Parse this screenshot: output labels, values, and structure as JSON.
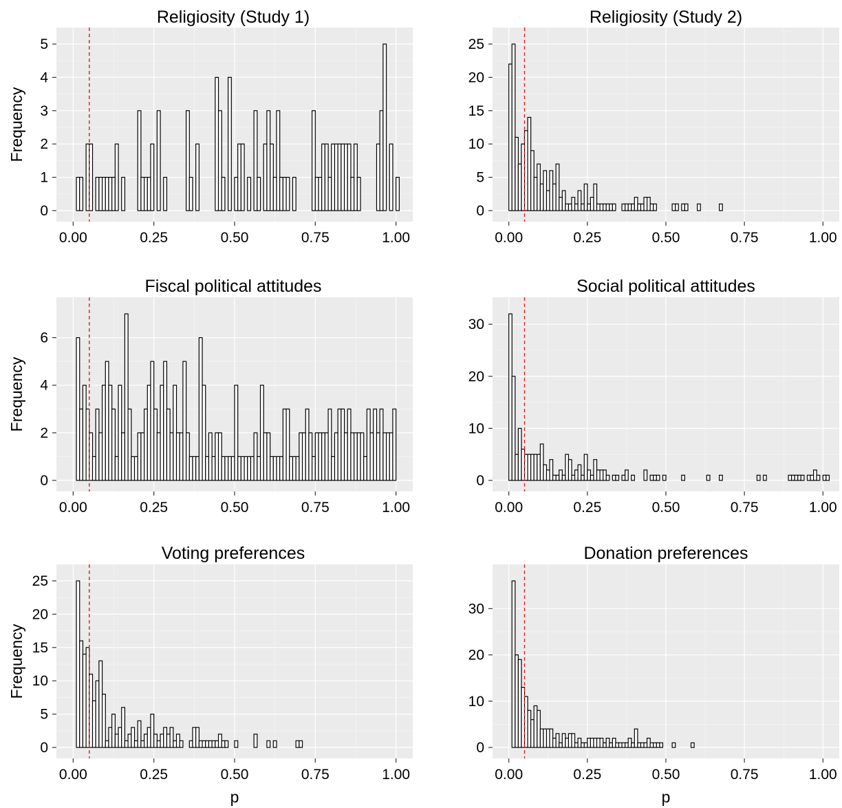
{
  "chart_data": [
    {
      "type": "bar",
      "title": "Religiosity (Study 1)",
      "xlabel": "",
      "ylabel": "Frequency",
      "bin_width": 0.01,
      "x_start": 0.0,
      "xlim": [
        0,
        1
      ],
      "ylim": [
        0,
        5
      ],
      "xticks": [
        0,
        0.25,
        0.5,
        0.75,
        1
      ],
      "xtick_labels": [
        "0.00",
        "0.25",
        "0.50",
        "0.75",
        "1.00"
      ],
      "yticks": [
        0,
        1,
        2,
        3,
        4,
        5
      ],
      "ytick_labels": [
        "0",
        "1",
        "2",
        "3",
        "4",
        "5"
      ],
      "reference_line_x": 0.05,
      "values": [
        0,
        1,
        1,
        0,
        2,
        2,
        0,
        1,
        1,
        1,
        1,
        1,
        1,
        2,
        0,
        1,
        0,
        0,
        0,
        0,
        3,
        1,
        1,
        1,
        2,
        0,
        3,
        0,
        1,
        0,
        0,
        0,
        0,
        0,
        0,
        3,
        1,
        0,
        2,
        0,
        0,
        0,
        0,
        0,
        4,
        3,
        1,
        0,
        4,
        0,
        1,
        2,
        2,
        0,
        1,
        0,
        3,
        1,
        0,
        2,
        3,
        2,
        1,
        3,
        1,
        1,
        1,
        0,
        1,
        0,
        0,
        0,
        0,
        0,
        3,
        1,
        1,
        2,
        2,
        1,
        2,
        2,
        2,
        2,
        2,
        2,
        1,
        2,
        1,
        0,
        0,
        0,
        0,
        0,
        2,
        3,
        5,
        0,
        2,
        0,
        1
      ],
      "grid": true
    },
    {
      "type": "bar",
      "title": "Religiosity (Study 2)",
      "xlabel": "",
      "ylabel": "",
      "bin_width": 0.01,
      "x_start": 0.0,
      "xlim": [
        0,
        1
      ],
      "ylim": [
        0,
        25
      ],
      "xticks": [
        0,
        0.25,
        0.5,
        0.75,
        1
      ],
      "xtick_labels": [
        "0.00",
        "0.25",
        "0.50",
        "0.75",
        "1.00"
      ],
      "yticks": [
        0,
        5,
        10,
        15,
        20,
        25
      ],
      "ytick_labels": [
        "0",
        "5",
        "10",
        "15",
        "20",
        "25"
      ],
      "reference_line_x": 0.05,
      "values": [
        22,
        25,
        11,
        7,
        10,
        12,
        14,
        9,
        5,
        7,
        4,
        6,
        3,
        6,
        4,
        7,
        2,
        3,
        1,
        1,
        2,
        1,
        3,
        1,
        4,
        1,
        2,
        4,
        1,
        1,
        1,
        1,
        1,
        1,
        0,
        0,
        1,
        1,
        1,
        1,
        2,
        1,
        1,
        2,
        2,
        1,
        1,
        0,
        0,
        0,
        0,
        0,
        1,
        1,
        0,
        1,
        1,
        0,
        0,
        0,
        1,
        0,
        0,
        0,
        0,
        0,
        0,
        1,
        0,
        0,
        0,
        0,
        0,
        0,
        0,
        0,
        0,
        0,
        0,
        0,
        0,
        0,
        0,
        0,
        0,
        0,
        0,
        0,
        0,
        0,
        0,
        0,
        0,
        0,
        0,
        0,
        0,
        0,
        0,
        0
      ],
      "grid": true
    },
    {
      "type": "bar",
      "title": "Fiscal political attitudes",
      "xlabel": "",
      "ylabel": "Frequency",
      "bin_width": 0.01,
      "x_start": 0.0,
      "xlim": [
        0,
        1
      ],
      "ylim": [
        0,
        7
      ],
      "xticks": [
        0,
        0.25,
        0.5,
        0.75,
        1
      ],
      "xtick_labels": [
        "0.00",
        "0.25",
        "0.50",
        "0.75",
        "1.00"
      ],
      "yticks": [
        0,
        2,
        4,
        6
      ],
      "ytick_labels": [
        "0",
        "2",
        "4",
        "6"
      ],
      "reference_line_x": 0.05,
      "values": [
        0,
        6,
        3,
        4,
        3,
        2,
        1,
        3,
        2,
        4,
        5,
        4,
        3,
        1,
        4,
        2,
        7,
        3,
        1,
        1,
        2,
        2,
        3,
        4,
        5,
        3,
        2,
        4,
        5,
        3,
        2,
        4,
        2,
        2,
        5,
        2,
        1,
        1,
        1,
        6,
        4,
        1,
        2,
        1,
        2,
        2,
        1,
        1,
        1,
        1,
        4,
        1,
        1,
        1,
        1,
        1,
        2,
        1,
        4,
        2,
        2,
        1,
        1,
        1,
        1,
        3,
        3,
        1,
        1,
        1,
        2,
        2,
        3,
        2,
        1,
        2,
        2,
        2,
        2,
        3,
        1,
        2,
        3,
        3,
        2,
        3,
        2,
        2,
        2,
        2,
        1,
        3,
        2,
        3,
        2,
        3,
        2,
        2,
        2,
        3,
        0
      ],
      "grid": true
    },
    {
      "type": "bar",
      "title": "Social political attitudes",
      "xlabel": "",
      "ylabel": "",
      "bin_width": 0.01,
      "x_start": 0.0,
      "xlim": [
        0,
        1
      ],
      "ylim": [
        0,
        32
      ],
      "xticks": [
        0,
        0.25,
        0.5,
        0.75,
        1
      ],
      "xtick_labels": [
        "0.00",
        "0.25",
        "0.50",
        "0.75",
        "1.00"
      ],
      "yticks": [
        0,
        10,
        20,
        30
      ],
      "ytick_labels": [
        "0",
        "10",
        "20",
        "30"
      ],
      "reference_line_x": 0.05,
      "values": [
        32,
        20,
        5,
        10,
        6,
        5,
        5,
        5,
        5,
        5,
        7,
        3,
        2,
        4,
        1,
        1,
        2,
        1,
        5,
        4,
        1,
        2,
        3,
        1,
        5,
        2,
        1,
        4,
        2,
        2,
        2,
        1,
        0,
        1,
        1,
        0,
        1,
        2,
        0,
        1,
        0,
        0,
        0,
        2,
        0,
        1,
        1,
        1,
        0,
        1,
        0,
        0,
        0,
        0,
        0,
        1,
        0,
        0,
        0,
        0,
        0,
        0,
        0,
        1,
        0,
        0,
        0,
        1,
        0,
        0,
        0,
        0,
        0,
        0,
        0,
        0,
        0,
        0,
        0,
        1,
        0,
        1,
        0,
        0,
        0,
        0,
        0,
        0,
        0,
        1,
        1,
        1,
        1,
        1,
        0,
        1,
        1,
        2,
        1,
        0,
        1,
        1
      ],
      "grid": true
    },
    {
      "type": "bar",
      "title": "Voting preferences",
      "xlabel": "p",
      "ylabel": "Frequency",
      "bin_width": 0.01,
      "x_start": 0.0,
      "xlim": [
        0,
        1
      ],
      "ylim": [
        0,
        25
      ],
      "xticks": [
        0,
        0.25,
        0.5,
        0.75,
        1
      ],
      "xtick_labels": [
        "0.00",
        "0.25",
        "0.50",
        "0.75",
        "1.00"
      ],
      "yticks": [
        0,
        5,
        10,
        15,
        20,
        25
      ],
      "ytick_labels": [
        "0",
        "5",
        "10",
        "15",
        "20",
        "25"
      ],
      "reference_line_x": 0.05,
      "values": [
        0,
        25,
        16,
        14,
        15,
        11,
        7,
        10,
        13,
        8,
        1,
        3,
        5,
        2,
        3,
        6,
        1,
        2,
        3,
        1,
        4,
        1,
        2,
        3,
        5,
        2,
        1,
        2,
        3,
        2,
        3,
        1,
        2,
        1,
        0,
        0,
        1,
        3,
        3,
        1,
        1,
        1,
        1,
        1,
        1,
        2,
        1,
        1,
        0,
        0,
        1,
        0,
        0,
        0,
        0,
        0,
        2,
        0,
        0,
        0,
        1,
        0,
        1,
        0,
        0,
        0,
        0,
        0,
        0,
        1,
        1,
        0,
        0,
        0,
        0,
        0,
        0,
        0,
        0,
        0,
        0,
        0,
        0,
        0,
        0,
        0,
        0,
        0,
        0,
        0,
        0,
        0,
        0,
        0,
        0,
        0,
        0,
        0,
        0,
        0
      ],
      "grid": true
    },
    {
      "type": "bar",
      "title": "Donation preferences",
      "xlabel": "p",
      "ylabel": "",
      "bin_width": 0.01,
      "x_start": 0.0,
      "xlim": [
        0,
        1
      ],
      "ylim": [
        0,
        36
      ],
      "xticks": [
        0,
        0.25,
        0.5,
        0.75,
        1
      ],
      "xtick_labels": [
        "0.00",
        "0.25",
        "0.50",
        "0.75",
        "1.00"
      ],
      "yticks": [
        0,
        10,
        20,
        30
      ],
      "ytick_labels": [
        "0",
        "10",
        "20",
        "30"
      ],
      "reference_line_x": 0.05,
      "values": [
        0,
        36,
        20,
        19,
        13,
        11,
        8,
        6,
        9,
        8,
        4,
        4,
        4,
        4,
        2,
        3,
        1,
        3,
        2,
        3,
        3,
        1,
        2,
        1,
        1,
        2,
        2,
        2,
        2,
        2,
        1,
        2,
        1,
        2,
        1,
        1,
        1,
        1,
        2,
        1,
        4,
        1,
        1,
        1,
        2,
        1,
        1,
        1,
        1,
        0,
        0,
        0,
        1,
        0,
        0,
        0,
        0,
        0,
        1,
        0,
        0,
        0,
        0,
        0,
        0,
        0,
        0,
        0,
        0,
        0,
        0,
        0,
        0,
        0,
        0,
        0,
        0,
        0,
        0,
        0,
        0,
        0,
        0,
        0,
        0,
        0,
        0,
        0,
        0,
        0,
        0,
        0,
        0,
        0,
        0,
        0,
        0,
        0,
        0,
        0
      ],
      "grid": true
    }
  ]
}
